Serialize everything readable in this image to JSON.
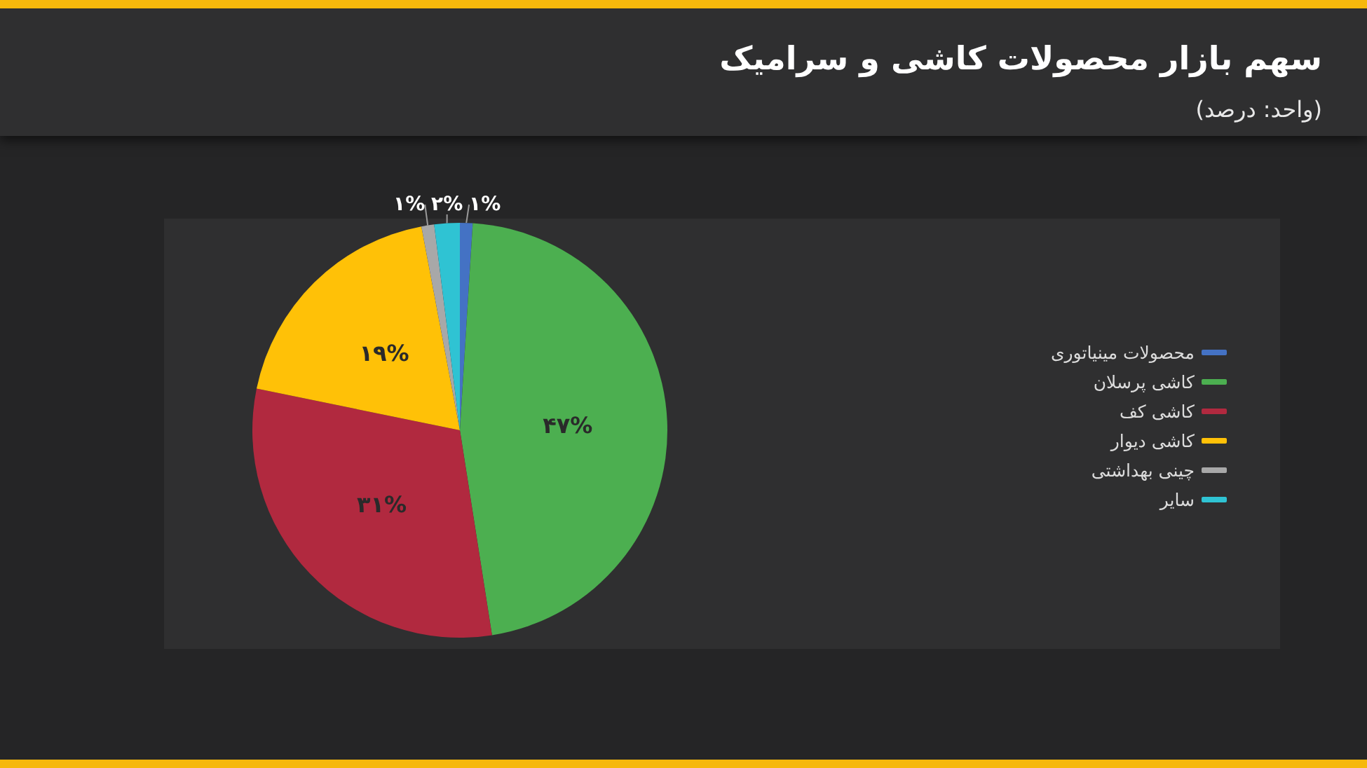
{
  "chart_data": {
    "type": "pie",
    "title": "سهم بازار محصولات کاشی و سرامیک",
    "subtitle": "(واحد: درصد)",
    "categories": [
      "محصولات مینیاتوری",
      "کاشی پرسلان",
      "کاشی کف",
      "کاشی دیوار",
      "چینی بهداشتی",
      "سایر"
    ],
    "values": [
      1,
      47,
      31,
      19,
      1,
      2
    ],
    "colors": [
      "#4472c4",
      "#4caf50",
      "#b1293f",
      "#ffc107",
      "#a8a8a8",
      "#2fc3d3"
    ],
    "value_labels": [
      "۱%",
      "۴۷%",
      "۳۱%",
      "۱۹%",
      "۱%",
      "۲%"
    ],
    "legend": "right"
  }
}
